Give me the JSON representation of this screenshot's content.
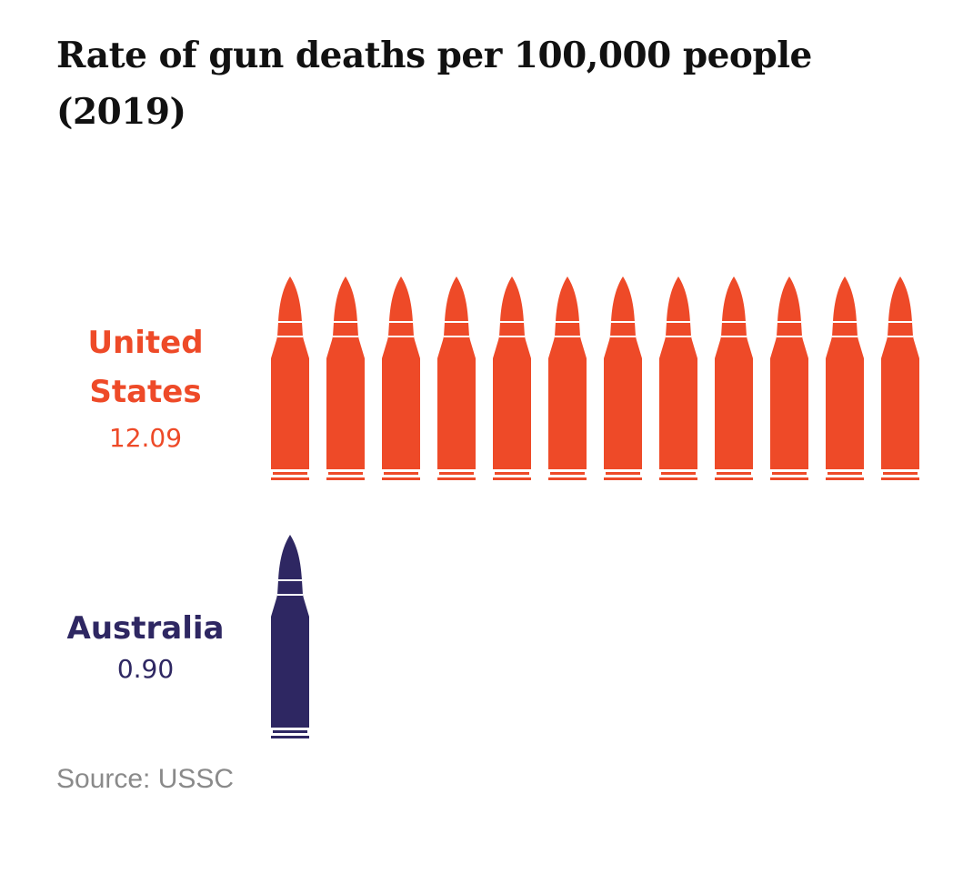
{
  "chart_data": {
    "type": "pictogram",
    "title": "Rate of gun deaths per 100,000 people (2019)",
    "unit_per_icon": 1,
    "series": [
      {
        "name": "United States",
        "value": 12.09,
        "value_label": "12.09",
        "color": "#EE4A28"
      },
      {
        "name": "Australia",
        "value": 0.9,
        "value_label": "0.90",
        "color": "#2E2762"
      }
    ],
    "source": "Source: USSC"
  },
  "labels": {
    "us_line1": "United",
    "us_line2": "States"
  },
  "icon": "bullet-icon"
}
